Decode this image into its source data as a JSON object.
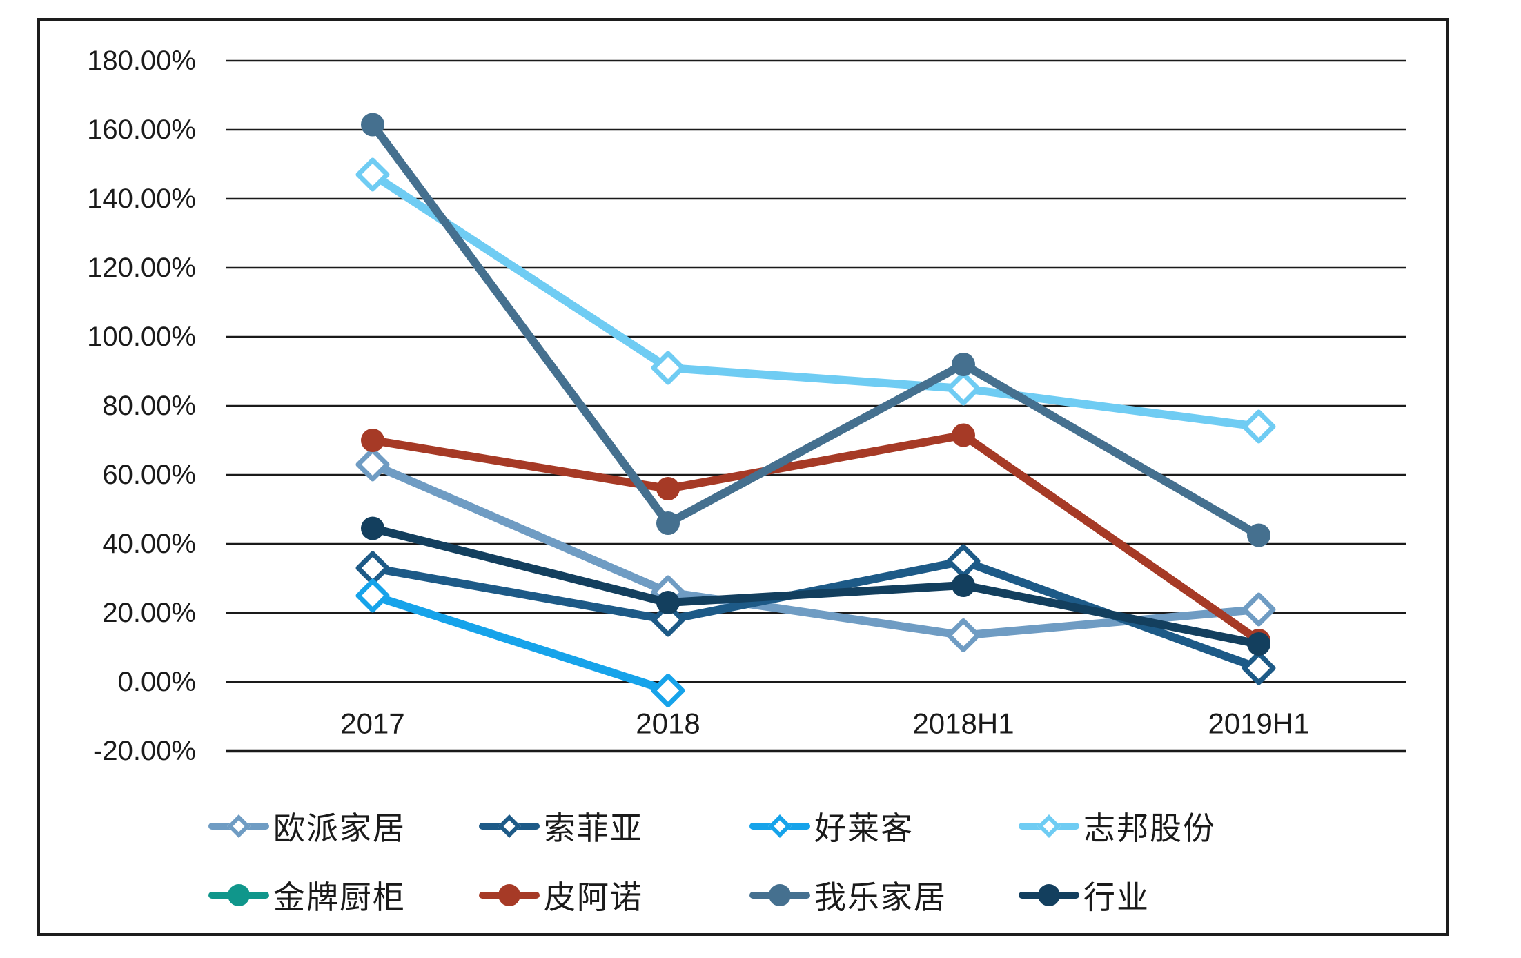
{
  "chart_data": {
    "type": "line",
    "title": "",
    "xlabel": "",
    "ylabel": "",
    "categories": [
      "2017",
      "2018",
      "2018H1",
      "2019H1"
    ],
    "series": [
      {
        "name": "欧派家居",
        "color": "#6f9cc3",
        "marker": "diamond",
        "values": [
          63,
          26,
          13.5,
          21
        ]
      },
      {
        "name": "索菲亚",
        "color": "#1d5a87",
        "marker": "diamond",
        "values": [
          33,
          18,
          35,
          4
        ]
      },
      {
        "name": "好莱客",
        "color": "#16a3ea",
        "marker": "diamond",
        "values": [
          25,
          -2.5,
          null,
          null
        ]
      },
      {
        "name": "志邦股份",
        "color": "#6fccf3",
        "marker": "diamond",
        "values": [
          147,
          91,
          85,
          74
        ]
      },
      {
        "name": "金牌厨柜",
        "color": "#10968b",
        "marker": "circle",
        "values": [
          null,
          null,
          null,
          null
        ]
      },
      {
        "name": "皮阿诺",
        "color": "#a63a26",
        "marker": "circle",
        "values": [
          70,
          56,
          71.5,
          12
        ]
      },
      {
        "name": "我乐家居",
        "color": "#45708f",
        "marker": "circle",
        "values": [
          161.5,
          46,
          92,
          42.5
        ]
      },
      {
        "name": "行业",
        "color": "#133f5e",
        "marker": "circle",
        "values": [
          44.5,
          23,
          28,
          11
        ]
      }
    ],
    "ylim": [
      -20,
      180
    ],
    "ytick_step": 20,
    "yticks": [
      {
        "label": "180.00%",
        "value": 180
      },
      {
        "label": "160.00%",
        "value": 160
      },
      {
        "label": "140.00%",
        "value": 140
      },
      {
        "label": "120.00%",
        "value": 120
      },
      {
        "label": "100.00%",
        "value": 100
      },
      {
        "label": "80.00%",
        "value": 80
      },
      {
        "label": "60.00%",
        "value": 60
      },
      {
        "label": "40.00%",
        "value": 40
      },
      {
        "label": "20.00%",
        "value": 20
      },
      {
        "label": "0.00%",
        "value": 0
      },
      {
        "label": "-20.00%",
        "value": -20
      }
    ],
    "grid": true,
    "legend_position": "bottom",
    "axis_color": "#1a1a1a"
  }
}
